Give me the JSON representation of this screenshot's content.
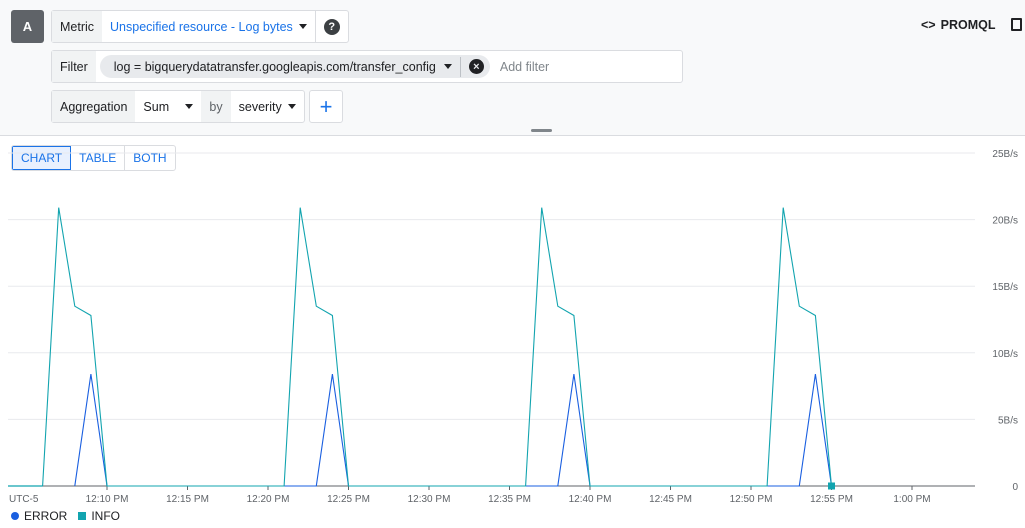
{
  "query": {
    "label": "A",
    "metric_label": "Metric",
    "metric_value": "Unspecified resource - Log bytes",
    "filter_label": "Filter",
    "filter_chip": "log = bigquerydatatransfer.googleapis.com/transfer_config",
    "filter_placeholder": "Add filter",
    "aggregation_label": "Aggregation",
    "aggregation_value": "Sum",
    "by_label": "by",
    "group_value": "severity",
    "add_icon": "plus-icon",
    "help_icon": "help-icon"
  },
  "header": {
    "promql_label": "PROMQL",
    "copy_icon": "copy-icon"
  },
  "view_toggle": {
    "options": [
      "CHART",
      "TABLE",
      "BOTH"
    ],
    "selected": "CHART"
  },
  "colors": {
    "ERROR": "#1a5fe0",
    "INFO": "#12a4af",
    "accent": "#1a73e8"
  },
  "chart_data": {
    "type": "line",
    "timezone": "UTC-5",
    "x_ticks": [
      "12:10 PM",
      "12:15 PM",
      "12:20 PM",
      "12:25 PM",
      "12:30 PM",
      "12:35 PM",
      "12:40 PM",
      "12:45 PM",
      "12:50 PM",
      "12:55 PM",
      "1:00 PM"
    ],
    "y_ticks": [
      "0",
      "5B/s",
      "10B/s",
      "15B/s",
      "20B/s",
      "25B/s"
    ],
    "ylim": [
      0,
      25
    ],
    "grid": true,
    "legend_position": "bottom-left",
    "x": [
      "12:06",
      "12:07",
      "12:08",
      "12:09",
      "12:10",
      "12:21",
      "12:22",
      "12:23",
      "12:24",
      "12:25",
      "12:36",
      "12:37",
      "12:38",
      "12:39",
      "12:40",
      "12:51",
      "12:52",
      "12:53",
      "12:54",
      "12:55"
    ],
    "series": [
      {
        "name": "ERROR",
        "values": [
          null,
          null,
          0,
          8.4,
          0,
          null,
          null,
          0,
          8.4,
          0,
          null,
          null,
          0,
          8.4,
          0,
          null,
          null,
          0,
          8.4,
          0
        ]
      },
      {
        "name": "INFO",
        "values": [
          0,
          20.9,
          13.5,
          12.8,
          0,
          0,
          20.9,
          13.5,
          12.8,
          0,
          0,
          20.9,
          13.5,
          12.8,
          0,
          0,
          20.9,
          13.5,
          12.8,
          0
        ]
      }
    ]
  }
}
